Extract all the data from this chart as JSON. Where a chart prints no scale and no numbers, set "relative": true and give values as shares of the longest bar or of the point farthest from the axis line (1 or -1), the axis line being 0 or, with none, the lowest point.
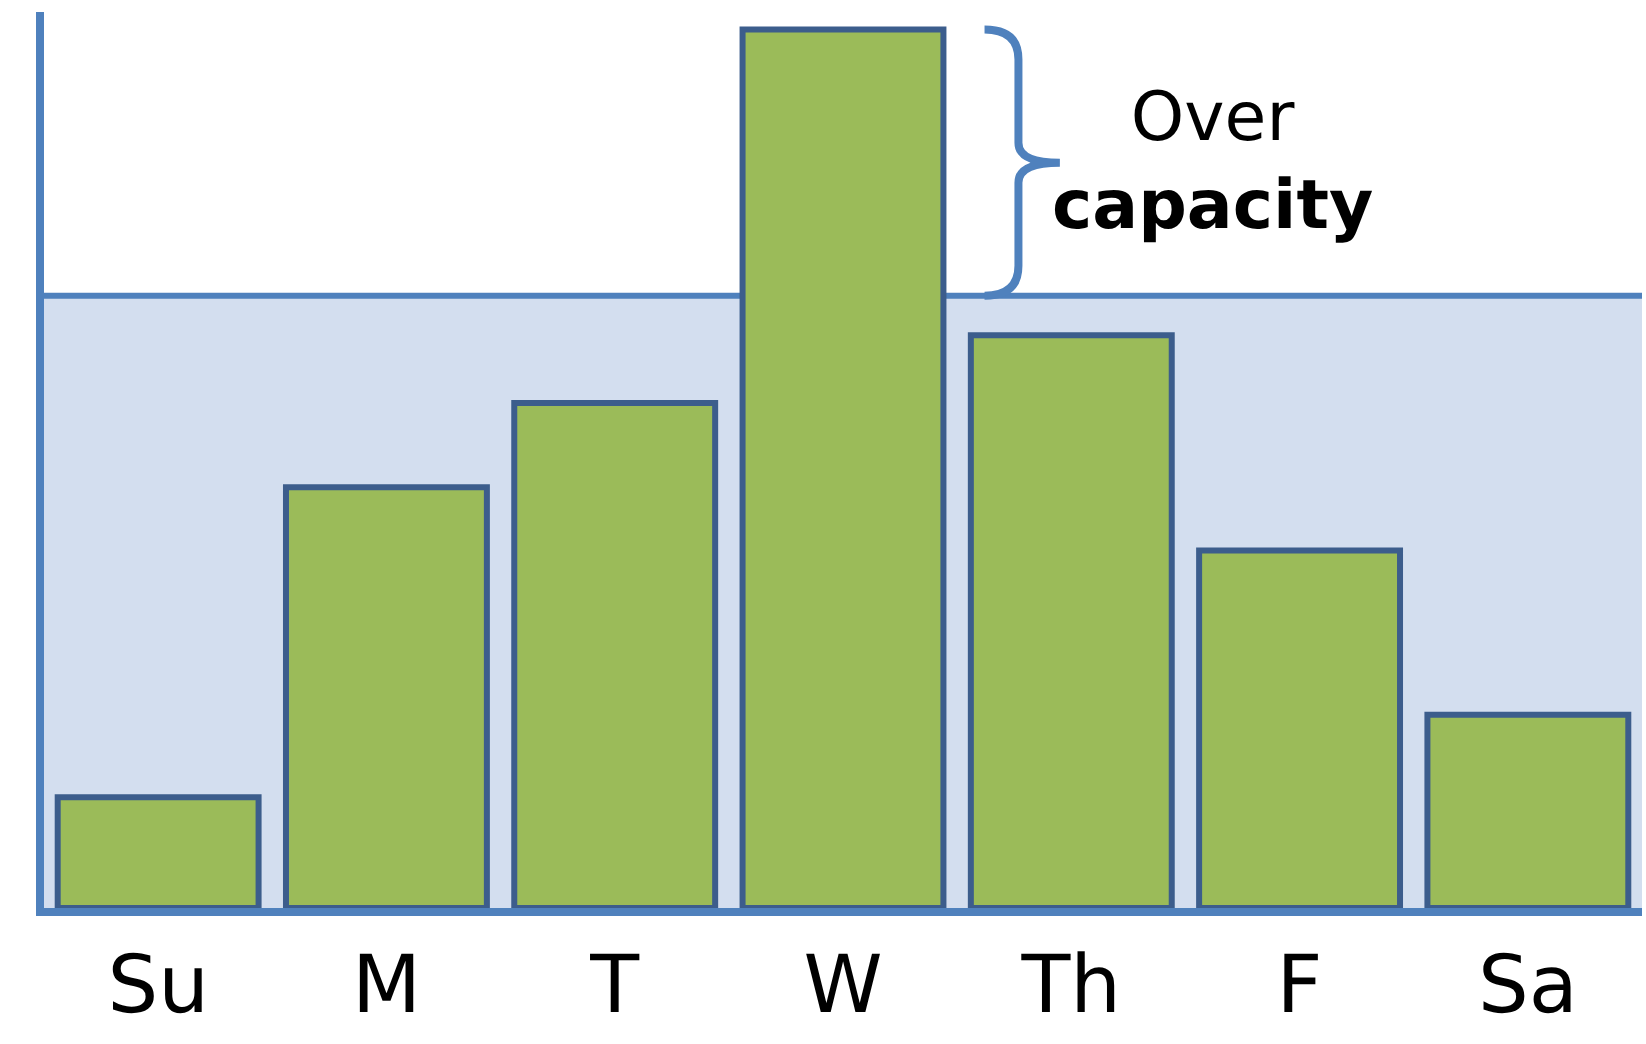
{
  "chart_data": {
    "type": "bar",
    "relative": true,
    "categories": [
      "Su",
      "M",
      "T",
      "W",
      "Th",
      "F",
      "Sa"
    ],
    "values": [
      0.126,
      0.479,
      0.575,
      1,
      0.652,
      0.407,
      0.22
    ],
    "color": "#9bbb59",
    "bands": [
      {
        "axis": "y",
        "from": 0,
        "to": 0.697,
        "color": "#d3deef"
      }
    ],
    "ref_lines": [
      {
        "axis": "y",
        "value": 0.697,
        "color": "#4f81bd"
      }
    ],
    "annotations": [
      "Over\ncapacity"
    ]
  }
}
